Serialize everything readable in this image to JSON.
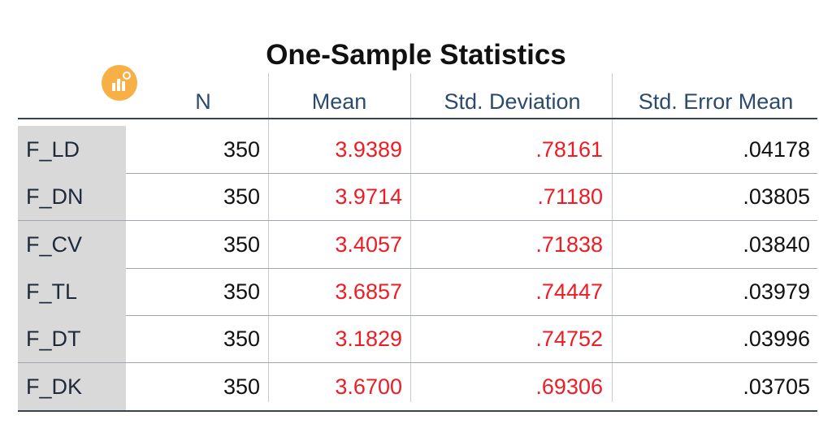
{
  "title": "One-Sample Statistics",
  "table": {
    "headers": [
      "N",
      "Mean",
      "Std. Deviation",
      "Std. Error Mean"
    ],
    "rows": [
      [
        "F_LD",
        "350",
        "3.9389",
        ".78161",
        ".04178"
      ],
      [
        "F_DN",
        "350",
        "3.9714",
        ".71180",
        ".03805"
      ],
      [
        "F_CV",
        "350",
        "3.4057",
        ".71838",
        ".03840"
      ],
      [
        "F_TL",
        "350",
        "3.6857",
        ".74447",
        ".03979"
      ],
      [
        "F_DT",
        "350",
        "3.1829",
        ".74752",
        ".03996"
      ],
      [
        "F_DK",
        "350",
        "3.6700",
        ".69306",
        ".03705"
      ]
    ]
  }
}
